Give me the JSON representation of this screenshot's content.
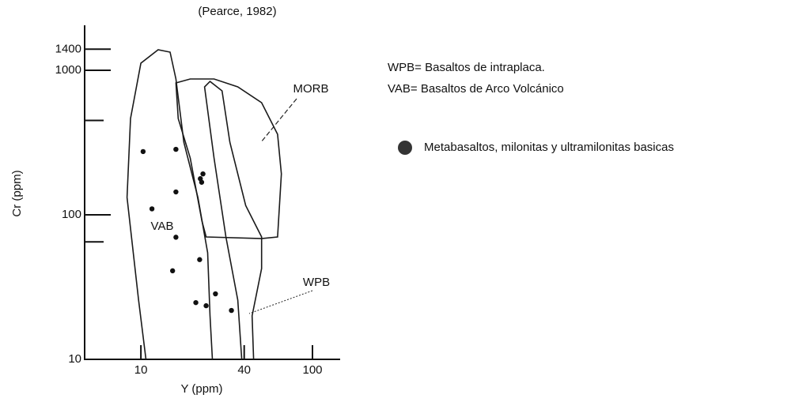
{
  "chart_data": {
    "type": "scatter",
    "title": "(Pearce, 1982)",
    "xlabel": "Y (ppm)",
    "ylabel": "Cr (ppm)",
    "log_x": true,
    "log_y": true,
    "xlim": [
      4.7,
      145
    ],
    "ylim": [
      10,
      2050
    ],
    "xticks": [
      10,
      40,
      100
    ],
    "yticks": [
      10,
      100,
      1000,
      1400
    ],
    "minor_yticks": [
      65,
      450
    ],
    "series": [
      {
        "name": "Metabasaltos, milonitas y ultramilonitas basicas",
        "color": "#111111",
        "x": [
          10.3,
          16.0,
          11.6,
          16.0,
          16.0,
          15.3,
          22.0,
          20.9,
          24.0,
          27.2,
          33.7,
          23.0,
          22.2,
          22.6
        ],
        "values": [
          274,
          284,
          110,
          144,
          70,
          41,
          49,
          24.7,
          23.5,
          28.4,
          21.8,
          192,
          178,
          168
        ]
      }
    ],
    "fields": [
      {
        "name": "VAB",
        "closed": false,
        "x": [
          10.7,
          9.7,
          8.3,
          8.7,
          10,
          12.6,
          14.8,
          16.0,
          17.8,
          21.5,
          24.5,
          25.3,
          26.1
        ],
        "y": [
          10,
          25.7,
          132,
          464,
          1120,
          1387,
          1336,
          871,
          318,
          132,
          54.7,
          20,
          10
        ]
      },
      {
        "name": "MORB",
        "closed": true,
        "x": [
          16.0,
          19.4,
          26.7,
          36.7,
          50.5,
          62.6,
          65.9,
          62.6,
          50.5,
          24.0,
          22.7,
          19.4,
          16.5
        ],
        "y": [
          818,
          871,
          871,
          768,
          597,
          361,
          192,
          70.3,
          68.5,
          70.3,
          90.4,
          247,
          464
        ]
      },
      {
        "name": "WPB",
        "closed": false,
        "x": [
          38.7,
          36.7,
          31.3,
          26.7,
          23.5,
          25.3,
          29.7,
          33.0,
          40.8,
          50.5,
          50.5,
          44.5,
          45.4
        ],
        "y": [
          10,
          25.7,
          70.3,
          247,
          768,
          838,
          721,
          318,
          116,
          70.3,
          42.5,
          20,
          10
        ]
      }
    ],
    "notes": [
      "WPB= Basaltos de intraplaca.",
      "VAB= Basaltos de Arco Volcánico"
    ]
  }
}
